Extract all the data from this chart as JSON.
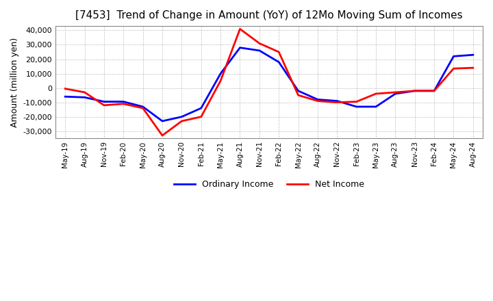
{
  "title": "[7453]  Trend of Change in Amount (YoY) of 12Mo Moving Sum of Incomes",
  "ylabel": "Amount (million yen)",
  "ylim": [
    -35000,
    43000
  ],
  "yticks": [
    -30000,
    -20000,
    -10000,
    0,
    10000,
    20000,
    30000,
    40000
  ],
  "line_color_ordinary": "#0000FF",
  "line_color_net": "#FF0000",
  "background_color": "#FFFFFF",
  "grid_color": "#AAAAAA",
  "legend_labels": [
    "Ordinary Income",
    "Net Income"
  ],
  "x_labels": [
    "May-19",
    "Aug-19",
    "Nov-19",
    "Feb-20",
    "May-20",
    "Aug-20",
    "Nov-20",
    "Feb-21",
    "May-21",
    "Aug-21",
    "Nov-21",
    "Feb-22",
    "May-22",
    "Aug-22",
    "Nov-22",
    "Feb-23",
    "May-23",
    "Aug-23",
    "Nov-23",
    "Feb-24",
    "May-24",
    "Aug-24"
  ],
  "ordinary_income": [
    -6000,
    -6500,
    -9500,
    -9500,
    -13000,
    -23000,
    -20000,
    -14000,
    10000,
    28000,
    26000,
    18000,
    -2000,
    -8000,
    -9000,
    -13000,
    -13000,
    -4000,
    -2000,
    -2000,
    22000,
    23000
  ],
  "net_income": [
    -500,
    -3000,
    -12000,
    -11000,
    -14000,
    -33000,
    -23000,
    -20000,
    5000,
    41000,
    31000,
    25000,
    -5000,
    -9000,
    -10000,
    -9500,
    -4000,
    -3000,
    -2000,
    -2000,
    13500,
    14000
  ]
}
